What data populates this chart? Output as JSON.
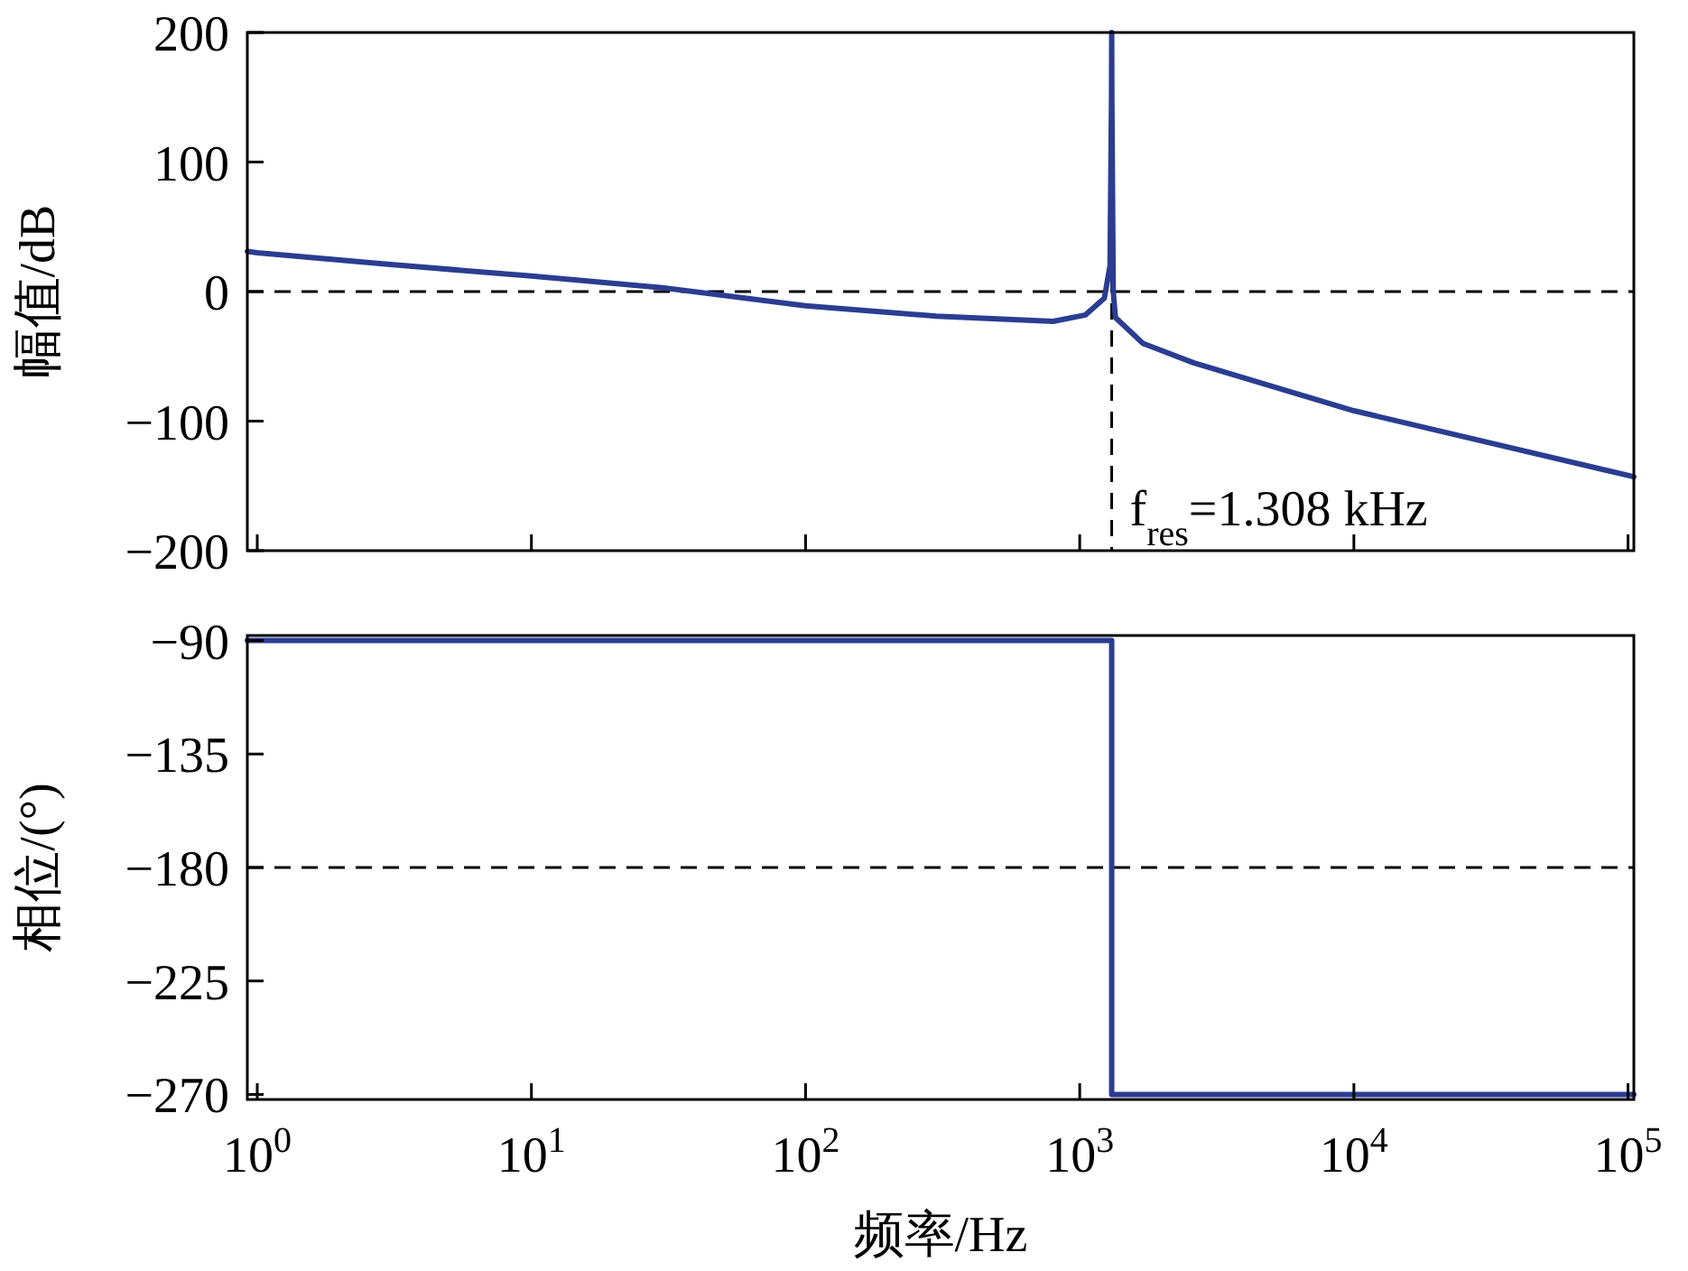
{
  "chart_data": [
    {
      "type": "line",
      "ylabel": "幅值/dB",
      "xlim": [
        0.92,
        105000
      ],
      "log": "x",
      "ylim": [
        -200,
        200
      ],
      "yticks": [
        {
          "value": -200,
          "label": "−200"
        },
        {
          "value": -100,
          "label": "−100"
        },
        0,
        100,
        200
      ],
      "xticks": [
        {
          "value": 1,
          "label": null
        },
        {
          "value": 10,
          "label": null
        },
        {
          "value": 100,
          "label": null
        },
        {
          "value": 1000,
          "label": null
        },
        {
          "value": 10000,
          "label": null
        },
        {
          "value": 100000,
          "label": null
        }
      ],
      "tick_labels": "y",
      "grid": false,
      "series": [
        {
          "color": "#2b3d91",
          "x": [
            0.92,
            1,
            3,
            10,
            30,
            100,
            300,
            800,
            1050,
            1230,
            1290,
            1306,
            1308,
            1310,
            1325,
            1350,
            1700,
            2600,
            10000,
            105000
          ],
          "values": [
            31,
            30,
            21,
            12,
            3,
            -11,
            -19,
            -23,
            -18,
            -5,
            20,
            150,
            200,
            150,
            0,
            -20,
            -40,
            -55,
            -92,
            -143
          ]
        }
      ],
      "ref_lines": [
        {
          "axis": "y",
          "value": 0,
          "line_style": "dashed",
          "color": "#000000"
        },
        {
          "axis": "x",
          "value": 1308,
          "line_style": "dashed",
          "color": "#000000",
          "label": "f$_{res}$=1.308 kHz"
        }
      ]
    },
    {
      "type": "step",
      "xlabel": "频率/Hz",
      "ylabel": "相位/(°)",
      "xlim": [
        0.92,
        105000
      ],
      "log": "x",
      "ylim": [
        -272,
        -88
      ],
      "yticks": [
        {
          "value": -270,
          "label": "−270"
        },
        {
          "value": -225,
          "label": "−225"
        },
        {
          "value": -180,
          "label": "−180"
        },
        {
          "value": -135,
          "label": "−135"
        },
        {
          "value": -90,
          "label": "−90"
        }
      ],
      "xticks": [
        {
          "value": 1,
          "label": "10$^{0}$"
        },
        {
          "value": 10,
          "label": "10$^{1}$"
        },
        {
          "value": 100,
          "label": "10$^{2}$"
        },
        {
          "value": 1000,
          "label": "10$^{3}$"
        },
        {
          "value": 10000,
          "label": "10$^{4}$"
        },
        {
          "value": 100000,
          "label": "10$^{5}$"
        }
      ],
      "grid": false,
      "series": [
        {
          "color": "#2b3d91",
          "x": [
            0.92,
            1308,
            105000
          ],
          "values": [
            -90,
            -270,
            -270
          ]
        }
      ],
      "ref_lines": [
        {
          "axis": "y",
          "value": -180,
          "line_style": "dashed",
          "color": "#000000"
        }
      ]
    }
  ]
}
